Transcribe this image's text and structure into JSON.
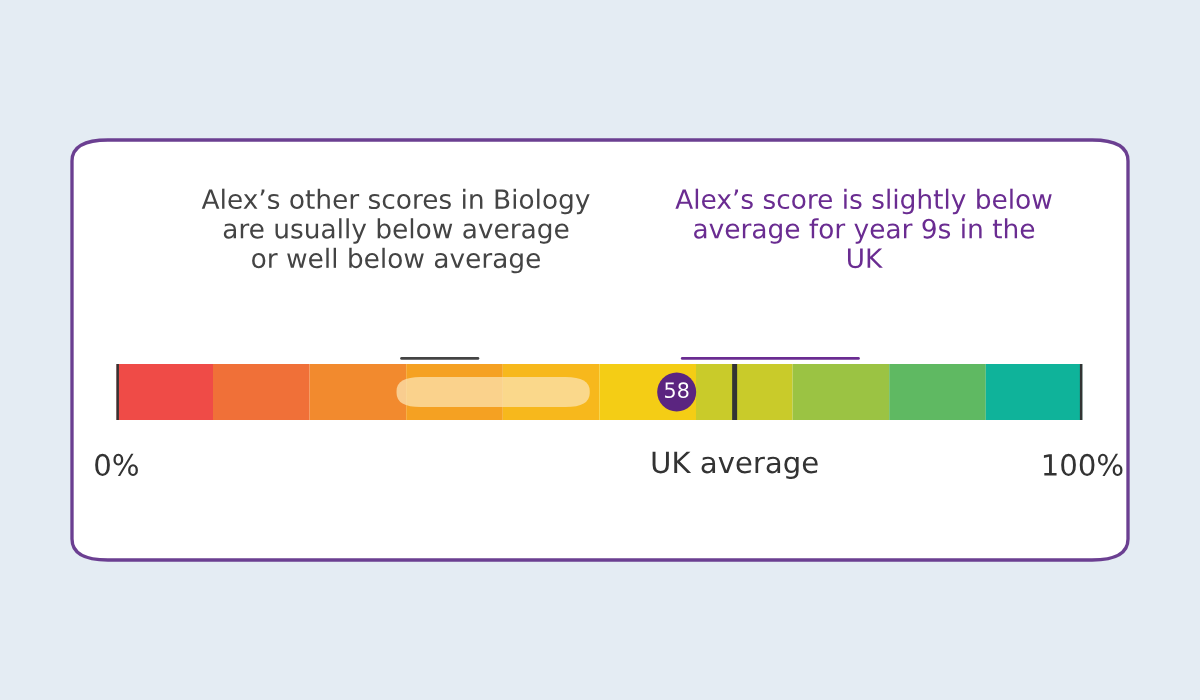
{
  "chart_data": {
    "type": "bar",
    "orientation": "horizontal",
    "stacked": true,
    "categories": [
      null
    ],
    "series": [
      {
        "color": "#ef4b47",
        "values": [
          10
        ]
      },
      {
        "color": "#f07038",
        "values": [
          10
        ]
      },
      {
        "color": "#f28a2e",
        "values": [
          10
        ]
      },
      {
        "color": "#f5a122",
        "values": [
          10
        ]
      },
      {
        "color": "#f7b81c",
        "values": [
          10
        ]
      },
      {
        "color": "#f4cd15",
        "values": [
          10
        ]
      },
      {
        "color": "#c9cb2a",
        "values": [
          10
        ]
      },
      {
        "color": "#9bc343",
        "values": [
          10
        ]
      },
      {
        "color": "#5fb962",
        "values": [
          10
        ]
      },
      {
        "color": "#0fb39a",
        "values": [
          10
        ]
      }
    ],
    "xlim": [
      0,
      100
    ],
    "xticks": [
      {
        "value": 0,
        "label": "0%"
      },
      {
        "value": 100,
        "label": "100%"
      }
    ],
    "ref_lines": [
      {
        "axis": "x",
        "value": 0,
        "color": "#333333"
      },
      {
        "axis": "x",
        "value": 64,
        "label": "UK average",
        "color": "#333333"
      },
      {
        "axis": "x",
        "value": 100,
        "color": "#333333"
      }
    ],
    "bands": [
      {
        "axis": "x",
        "from": 29,
        "to": 49,
        "color": "#fbe3b0"
      }
    ],
    "annotations": [
      "Alex’s other scores in Biology\nare usually below average\nor well below average",
      "Alex’s score is slightly below\naverage for year 9s in the\nUK",
      {
        "text": "58",
        "x": 58
      }
    ]
  }
}
